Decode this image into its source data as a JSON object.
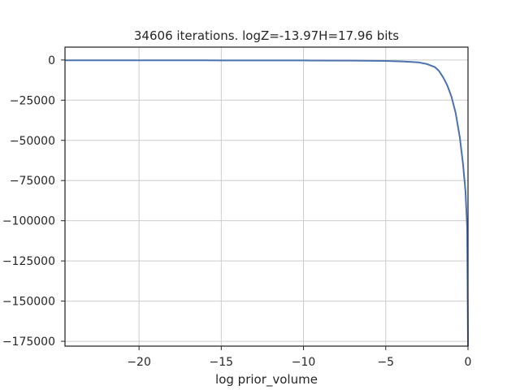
{
  "chart_data": {
    "type": "line",
    "title": "34606 iterations. logZ=-13.97H=17.96 bits",
    "xlabel": "log prior_volume",
    "ylabel": "",
    "xlim": [
      -24.5,
      0
    ],
    "ylim": [
      -178000,
      8000
    ],
    "grid": true,
    "x_ticks": [
      -20,
      -15,
      -10,
      -5,
      0
    ],
    "x_tick_labels": [
      "−20",
      "−15",
      "−10",
      "−5",
      "0"
    ],
    "y_ticks": [
      0,
      -25000,
      -50000,
      -75000,
      -100000,
      -125000,
      -150000,
      -175000
    ],
    "y_tick_labels": [
      "0",
      "−25000",
      "−50000",
      "−75000",
      "−100000",
      "−125000",
      "−150000",
      "−175000"
    ],
    "series": [
      {
        "color": "#4c72b0",
        "x": [
          -24.5,
          -20,
          -15,
          -10,
          -7,
          -5,
          -4,
          -3,
          -2.5,
          -2,
          -1.75,
          -1.5,
          -1.25,
          -1,
          -0.75,
          -0.5,
          -0.3,
          -0.15,
          -0.05,
          0
        ],
        "y": [
          -200,
          -200,
          -250,
          -300,
          -400,
          -600,
          -900,
          -1500,
          -2500,
          -4500,
          -7000,
          -11000,
          -16000,
          -23000,
          -33000,
          -48000,
          -65000,
          -82000,
          -105000,
          -178000
        ]
      }
    ]
  }
}
